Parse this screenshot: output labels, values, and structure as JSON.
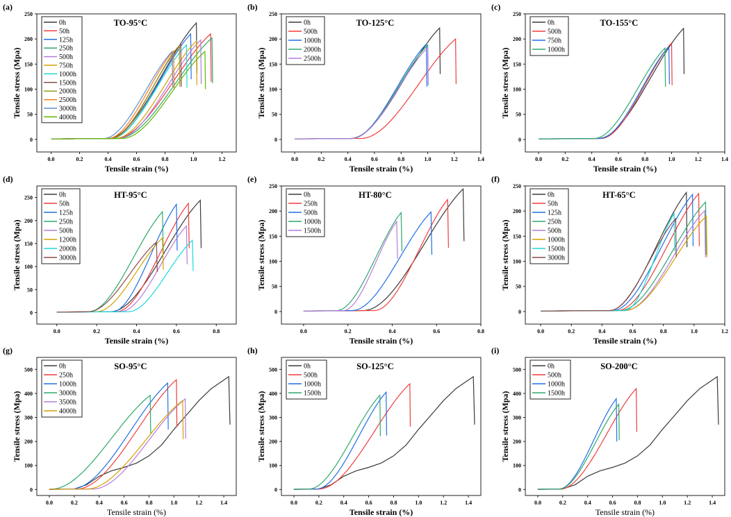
{
  "colors": {
    "0": "#3a3a3a",
    "red": "#f03c3c",
    "blue": "#1f6fe6",
    "green": "#2ea86a",
    "purple": "#b57bdb",
    "gold": "#d4a000",
    "cyan": "#1ed8d8",
    "brown": "#8b4a4a",
    "olive": "#9a9a20",
    "orange": "#ff7a10",
    "lightblue": "#5a8fd6",
    "lime": "#5bb800"
  },
  "chart_data": [
    {
      "type": "line",
      "label": "(a)",
      "title": "TO-95°C",
      "xlabel": "Tensile strain (%)",
      "ylabel": "Tensile stress (Mpa)",
      "xlim": [
        -0.1,
        1.3
      ],
      "ylim": [
        -25,
        250
      ],
      "xticks": [
        0,
        0.2,
        0.4,
        0.6,
        0.8,
        1.0,
        1.2
      ],
      "yticks": [
        0,
        50,
        100,
        150,
        200,
        250
      ],
      "series": [
        {
          "name": "0h",
          "color": "#3a3a3a",
          "onset": 0.4,
          "break": 1.02,
          "peak": 232,
          "drop": 132
        },
        {
          "name": "50h",
          "color": "#f03c3c",
          "onset": 0.45,
          "break": 1.12,
          "peak": 210,
          "drop": 115
        },
        {
          "name": "125h",
          "color": "#1f6fe6",
          "onset": 0.42,
          "break": 0.98,
          "peak": 210,
          "drop": 120
        },
        {
          "name": "250h",
          "color": "#2ea86a",
          "onset": 0.47,
          "break": 1.13,
          "peak": 202,
          "drop": 112
        },
        {
          "name": "500h",
          "color": "#b57bdb",
          "onset": 0.47,
          "break": 1.05,
          "peak": 198,
          "drop": 110
        },
        {
          "name": "750h",
          "color": "#d4a000",
          "onset": 0.45,
          "break": 1.02,
          "peak": 196,
          "drop": 108
        },
        {
          "name": "1000h",
          "color": "#1ed8d8",
          "onset": 0.42,
          "break": 0.95,
          "peak": 188,
          "drop": 103
        },
        {
          "name": "1500h",
          "color": "#8b4a4a",
          "onset": 0.41,
          "break": 0.91,
          "peak": 189,
          "drop": 105
        },
        {
          "name": "2000h",
          "color": "#9a9a20",
          "onset": 0.42,
          "break": 0.9,
          "peak": 187,
          "drop": 105
        },
        {
          "name": "2500h",
          "color": "#ff7a10",
          "onset": 0.4,
          "break": 0.86,
          "peak": 176,
          "drop": 100
        },
        {
          "name": "3000h",
          "color": "#5a8fd6",
          "onset": 0.37,
          "break": 0.85,
          "peak": 175,
          "drop": 105
        },
        {
          "name": "4000h",
          "color": "#5bb800",
          "onset": 0.5,
          "break": 1.08,
          "peak": 175,
          "drop": 100
        }
      ]
    },
    {
      "type": "line",
      "label": "(b)",
      "title": "TO-125°C",
      "xlabel": "Tensile strain (%)",
      "ylabel": "Tensile stress (Mpa)",
      "xlim": [
        -0.1,
        1.4
      ],
      "ylim": [
        -25,
        250
      ],
      "xticks": [
        0,
        0.2,
        0.4,
        0.6,
        0.8,
        1.0,
        1.2,
        1.4
      ],
      "yticks": [
        0,
        50,
        100,
        150,
        200,
        250
      ],
      "series": [
        {
          "name": "0h",
          "color": "#3a3a3a",
          "onset": 0.42,
          "break": 1.09,
          "peak": 222,
          "drop": 130
        },
        {
          "name": "500h",
          "color": "#f03c3c",
          "onset": 0.5,
          "break": 1.21,
          "peak": 200,
          "drop": 110
        },
        {
          "name": "1000h",
          "color": "#1f6fe6",
          "onset": 0.43,
          "break": 0.99,
          "peak": 190,
          "drop": 105
        },
        {
          "name": "2000h",
          "color": "#2ea86a",
          "onset": 0.43,
          "break": 1.0,
          "peak": 188,
          "drop": 108
        },
        {
          "name": "2500h",
          "color": "#b57bdb",
          "onset": 0.43,
          "break": 1.0,
          "peak": 183,
          "drop": 110
        }
      ]
    },
    {
      "type": "line",
      "label": "(c)",
      "title": "TO-155°C",
      "xlabel": "Tensile strain (%)",
      "ylabel": "Tensile stress (Mpa)",
      "xlim": [
        -0.1,
        1.4
      ],
      "ylim": [
        -25,
        250
      ],
      "xticks": [
        0,
        0.2,
        0.4,
        0.6,
        0.8,
        1.0,
        1.2,
        1.4
      ],
      "yticks": [
        0,
        50,
        100,
        150,
        200,
        250
      ],
      "series": [
        {
          "name": "0h",
          "color": "#3a3a3a",
          "onset": 0.45,
          "break": 1.09,
          "peak": 221,
          "drop": 130
        },
        {
          "name": "500h",
          "color": "#f03c3c",
          "onset": 0.47,
          "break": 1.0,
          "peak": 192,
          "drop": 108
        },
        {
          "name": "750h",
          "color": "#1f6fe6",
          "onset": 0.46,
          "break": 0.98,
          "peak": 185,
          "drop": 110
        },
        {
          "name": "1000h",
          "color": "#2ea86a",
          "onset": 0.42,
          "break": 0.95,
          "peak": 182,
          "drop": 105
        }
      ]
    },
    {
      "type": "line",
      "label": "(d)",
      "title": "HT-95°C",
      "xlabel": "Tensile strain (%)",
      "ylabel": "Tensile stress (Mpa)",
      "xlim": [
        -0.1,
        0.9
      ],
      "ylim": [
        -25,
        275
      ],
      "xticks": [
        0,
        0.2,
        0.4,
        0.6,
        0.8
      ],
      "yticks": [
        0,
        50,
        100,
        150,
        200,
        250
      ],
      "series": [
        {
          "name": "0h",
          "color": "#3a3a3a",
          "onset": 0.27,
          "break": 0.72,
          "peak": 244,
          "drop": 140
        },
        {
          "name": "50h",
          "color": "#f03c3c",
          "onset": 0.3,
          "break": 0.66,
          "peak": 237,
          "drop": 140
        },
        {
          "name": "125h",
          "color": "#1f6fe6",
          "onset": 0.28,
          "break": 0.6,
          "peak": 235,
          "drop": 135
        },
        {
          "name": "250h",
          "color": "#2ea86a",
          "onset": 0.16,
          "break": 0.53,
          "peak": 219,
          "drop": 130
        },
        {
          "name": "500h",
          "color": "#b57bdb",
          "onset": 0.32,
          "break": 0.65,
          "peak": 188,
          "drop": 105
        },
        {
          "name": "1200h",
          "color": "#d4a000",
          "onset": 0.2,
          "break": 0.53,
          "peak": 162,
          "drop": 93
        },
        {
          "name": "2000h",
          "color": "#1ed8d8",
          "onset": 0.36,
          "break": 0.68,
          "peak": 157,
          "drop": 90
        },
        {
          "name": "3000h",
          "color": "#8b4a4a",
          "onset": 0.16,
          "break": 0.5,
          "peak": 153,
          "drop": 88
        }
      ]
    },
    {
      "type": "line",
      "label": "(e)",
      "title": "HT-80°C",
      "xlabel": "Tensile strain (%)",
      "ylabel": "Tensile stress (Mpa)",
      "xlim": [
        -0.1,
        0.8
      ],
      "ylim": [
        -25,
        250
      ],
      "xticks": [
        0,
        0.2,
        0.4,
        0.6,
        0.8
      ],
      "yticks": [
        0,
        50,
        100,
        150,
        200,
        250
      ],
      "series": [
        {
          "name": "0h",
          "color": "#3a3a3a",
          "onset": 0.27,
          "break": 0.72,
          "peak": 244,
          "drop": 140
        },
        {
          "name": "250h",
          "color": "#f03c3c",
          "onset": 0.32,
          "break": 0.65,
          "peak": 223,
          "drop": 127
        },
        {
          "name": "500h",
          "color": "#1f6fe6",
          "onset": 0.22,
          "break": 0.575,
          "peak": 198,
          "drop": 113
        },
        {
          "name": "1000h",
          "color": "#2ea86a",
          "onset": 0.15,
          "break": 0.44,
          "peak": 197,
          "drop": 120
        },
        {
          "name": "1500h",
          "color": "#b57bdb",
          "onset": 0.18,
          "break": 0.42,
          "peak": 179,
          "drop": 105
        }
      ]
    },
    {
      "type": "line",
      "label": "(f)",
      "title": "HT-65°C",
      "xlabel": "Tensile strain (%)",
      "ylabel": "Tensile stress (Mpa)",
      "xlim": [
        -0.1,
        1.2
      ],
      "ylim": [
        -25,
        250
      ],
      "xticks": [
        0,
        0.2,
        0.4,
        0.6,
        0.8,
        1.0,
        1.2
      ],
      "yticks": [
        0,
        50,
        100,
        150,
        200,
        250
      ],
      "series": [
        {
          "name": "0h",
          "color": "#3a3a3a",
          "onset": 0.45,
          "break": 0.95,
          "peak": 237,
          "drop": 128
        },
        {
          "name": "50h",
          "color": "#f03c3c",
          "onset": 0.5,
          "break": 1.03,
          "peak": 235,
          "drop": 130
        },
        {
          "name": "125h",
          "color": "#1f6fe6",
          "onset": 0.47,
          "break": 0.99,
          "peak": 233,
          "drop": 130
        },
        {
          "name": "250h",
          "color": "#2ea86a",
          "onset": 0.52,
          "break": 1.075,
          "peak": 218,
          "drop": 113
        },
        {
          "name": "500h",
          "color": "#b57bdb",
          "onset": 0.55,
          "break": 1.07,
          "peak": 201,
          "drop": 108
        },
        {
          "name": "1000h",
          "color": "#d4a000",
          "onset": 0.55,
          "break": 1.08,
          "peak": 190,
          "drop": 108
        },
        {
          "name": "1500h",
          "color": "#1ed8d8",
          "onset": 0.55,
          "break": 0.87,
          "peak": 195,
          "drop": 120
        },
        {
          "name": "3000h",
          "color": "#8b4a4a",
          "onset": 0.45,
          "break": 0.88,
          "peak": 185,
          "drop": 108
        }
      ]
    },
    {
      "type": "line",
      "label": "(g)",
      "title": "SO-95°C",
      "xlabel": "Tensile strain (%)",
      "ylabel": "Tensile stress (Mpa)",
      "xlim": [
        -0.1,
        1.5
      ],
      "ylim": [
        -25,
        550
      ],
      "xticks": [
        0,
        0.2,
        0.4,
        0.6,
        0.8,
        1.0,
        1.2,
        1.4
      ],
      "yticks": [
        0,
        100,
        200,
        300,
        400,
        500
      ],
      "series": [
        {
          "name": "0h",
          "color": "#3a3a3a",
          "points": [
            [
              0,
              0
            ],
            [
              0.2,
              2
            ],
            [
              0.3,
              20
            ],
            [
              0.4,
              55
            ],
            [
              0.5,
              78
            ],
            [
              0.6,
              92
            ],
            [
              0.7,
              110
            ],
            [
              0.8,
              140
            ],
            [
              0.9,
              185
            ],
            [
              1.0,
              250
            ],
            [
              1.1,
              310
            ],
            [
              1.2,
              370
            ],
            [
              1.3,
              420
            ],
            [
              1.44,
              470
            ],
            [
              1.45,
              270
            ]
          ]
        },
        {
          "name": "250h",
          "color": "#f03c3c",
          "onset": 0.22,
          "break": 1.02,
          "peak": 457,
          "drop": 260
        },
        {
          "name": "1000h",
          "color": "#1f6fe6",
          "onset": 0.18,
          "break": 0.95,
          "peak": 443,
          "drop": 250
        },
        {
          "name": "3000h",
          "color": "#2ea86a",
          "onset": 0.02,
          "break": 0.81,
          "peak": 392,
          "drop": 230
        },
        {
          "name": "3500h",
          "color": "#b57bdb",
          "onset": 0.35,
          "break": 1.09,
          "peak": 377,
          "drop": 212
        },
        {
          "name": "4000h",
          "color": "#d4a000",
          "onset": 0.3,
          "break": 1.07,
          "peak": 370,
          "drop": 210
        }
      ]
    },
    {
      "type": "line",
      "label": "(h)",
      "title": "SO-125°C",
      "xlabel": "Tensile strain (%)",
      "ylabel": "Tensile stress (Mpa)",
      "xlim": [
        -0.1,
        1.5
      ],
      "ylim": [
        -25,
        550
      ],
      "xticks": [
        0,
        0.2,
        0.4,
        0.6,
        0.8,
        1.0,
        1.2,
        1.4
      ],
      "yticks": [
        0,
        100,
        200,
        300,
        400,
        500
      ],
      "series": [
        {
          "name": "0h",
          "color": "#3a3a3a",
          "points": [
            [
              0,
              0
            ],
            [
              0.2,
              2
            ],
            [
              0.3,
              20
            ],
            [
              0.4,
              55
            ],
            [
              0.5,
              78
            ],
            [
              0.6,
              92
            ],
            [
              0.7,
              110
            ],
            [
              0.8,
              140
            ],
            [
              0.9,
              185
            ],
            [
              1.0,
              250
            ],
            [
              1.1,
              310
            ],
            [
              1.2,
              370
            ],
            [
              1.3,
              420
            ],
            [
              1.44,
              470
            ],
            [
              1.45,
              270
            ]
          ]
        },
        {
          "name": "500h",
          "color": "#f03c3c",
          "onset": 0.2,
          "break": 0.93,
          "peak": 440,
          "drop": 262
        },
        {
          "name": "1000h",
          "color": "#1f6fe6",
          "onset": 0.18,
          "break": 0.74,
          "peak": 405,
          "drop": 225
        },
        {
          "name": "1500h",
          "color": "#2ea86a",
          "onset": 0.12,
          "break": 0.69,
          "peak": 392,
          "drop": 222
        }
      ]
    },
    {
      "type": "line",
      "label": "(i)",
      "title": "SO-200°C",
      "xlabel": "Tensile strain (%)",
      "ylabel": "Tensile stress (Mpa)",
      "xlim": [
        -0.1,
        1.5
      ],
      "ylim": [
        -25,
        550
      ],
      "xticks": [
        0,
        0.2,
        0.4,
        0.6,
        0.8,
        1.0,
        1.2,
        1.4
      ],
      "yticks": [
        0,
        100,
        200,
        300,
        400,
        500
      ],
      "series": [
        {
          "name": "0h",
          "color": "#3a3a3a",
          "points": [
            [
              0,
              0
            ],
            [
              0.2,
              2
            ],
            [
              0.3,
              20
            ],
            [
              0.4,
              55
            ],
            [
              0.5,
              78
            ],
            [
              0.6,
              92
            ],
            [
              0.7,
              110
            ],
            [
              0.8,
              140
            ],
            [
              0.9,
              185
            ],
            [
              1.0,
              250
            ],
            [
              1.1,
              310
            ],
            [
              1.2,
              370
            ],
            [
              1.3,
              420
            ],
            [
              1.44,
              470
            ],
            [
              1.45,
              270
            ]
          ]
        },
        {
          "name": "500h",
          "color": "#f03c3c",
          "onset": 0.18,
          "break": 0.79,
          "peak": 420,
          "drop": 240
        },
        {
          "name": "1000h",
          "color": "#1f6fe6",
          "onset": 0.17,
          "break": 0.63,
          "peak": 378,
          "drop": 200
        },
        {
          "name": "1500h",
          "color": "#2ea86a",
          "onset": 0.17,
          "break": 0.65,
          "peak": 355,
          "drop": 205
        }
      ]
    }
  ]
}
